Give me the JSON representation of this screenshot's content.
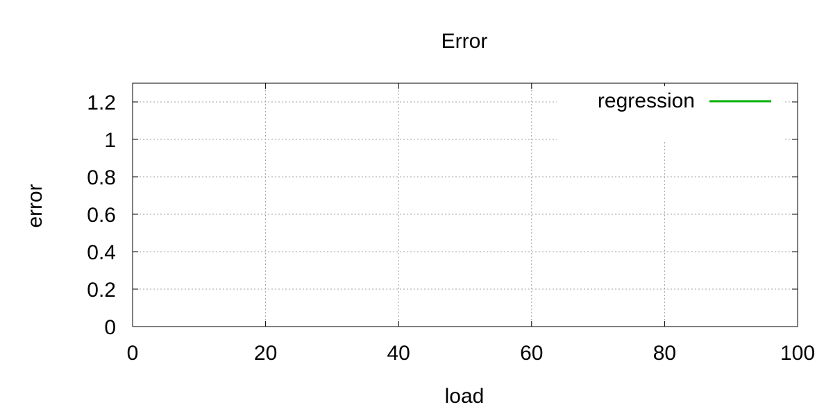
{
  "chart_data": {
    "type": "line",
    "title": "Error",
    "xlabel": "load",
    "ylabel": "error",
    "xlim": [
      0,
      100
    ],
    "ylim": [
      0,
      1.3
    ],
    "x_ticks": [
      0,
      20,
      40,
      60,
      80,
      100
    ],
    "y_ticks": [
      0,
      0.2,
      0.4,
      0.6,
      0.8,
      1,
      1.2
    ],
    "grid": true,
    "legend_position": "top-right",
    "series": [
      {
        "name": "regression",
        "color": "#00b000",
        "x": [],
        "y": []
      }
    ]
  }
}
